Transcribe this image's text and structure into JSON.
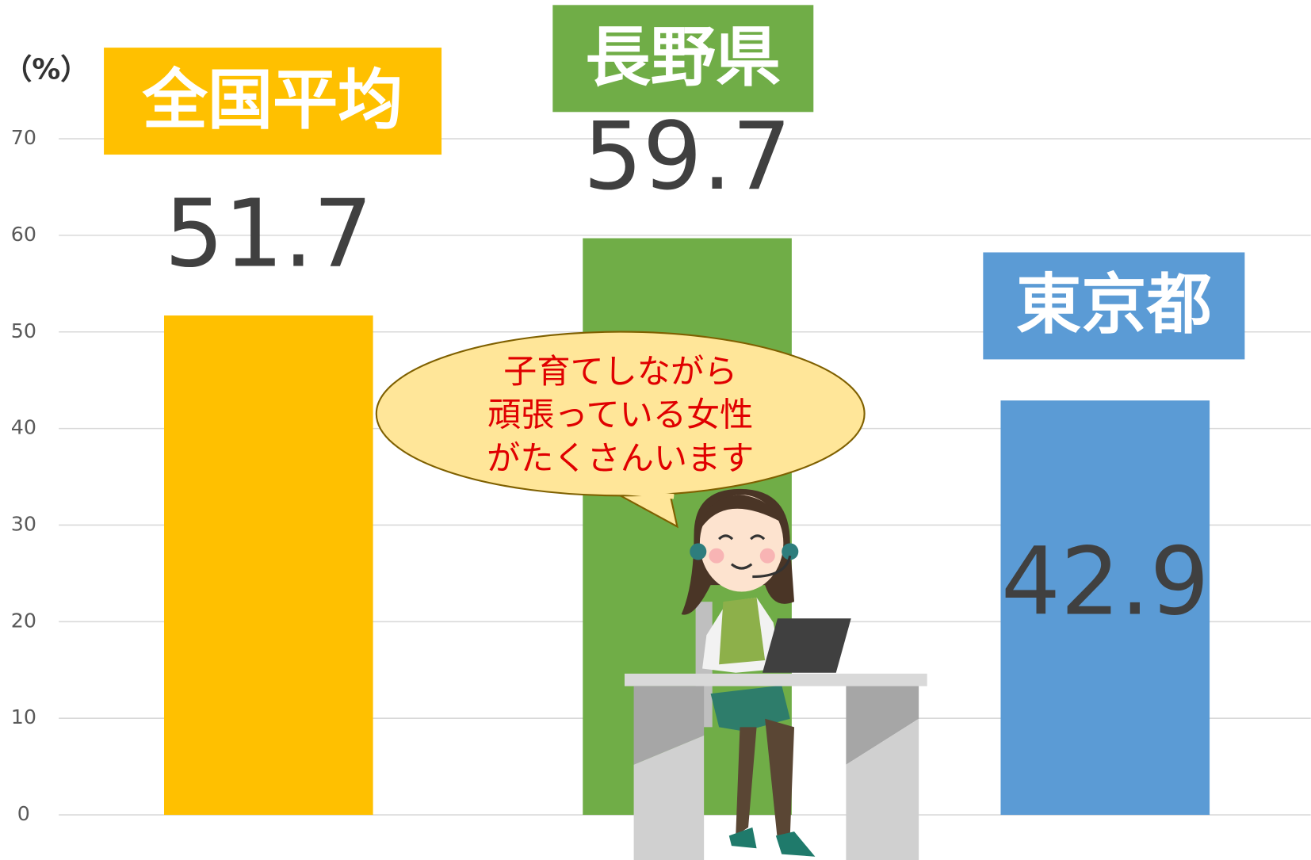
{
  "chart_data": {
    "type": "bar",
    "y_label": "（%）",
    "categories": [
      "全国平均",
      "長野県",
      "東京都"
    ],
    "values": [
      51.7,
      59.7,
      42.9
    ],
    "colors": [
      "#ffc000",
      "#70ad47",
      "#5b9bd5"
    ],
    "ylim": [
      0,
      70
    ],
    "yticks": [
      0,
      10,
      20,
      30,
      40,
      50,
      60,
      70
    ],
    "grid": true,
    "annotation": [
      "子育てしながら",
      "頑張っている女性",
      "がたくさんいます"
    ]
  }
}
